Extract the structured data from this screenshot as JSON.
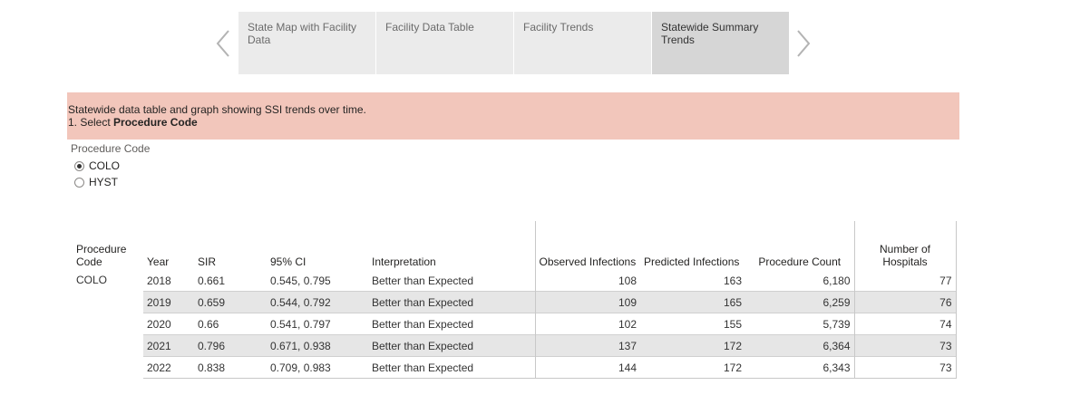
{
  "nav": {
    "tabs": [
      {
        "label": "State Map with Facility Data",
        "active": false
      },
      {
        "label": "Facility Data Table",
        "active": false
      },
      {
        "label": "Facility Trends",
        "active": false
      },
      {
        "label": "Statewide Summary Trends",
        "active": true
      }
    ]
  },
  "banner": {
    "line1": "Statewide data table and graph showing SSI trends over time.",
    "line2_prefix": "1. Select ",
    "line2_bold": "Procedure Code"
  },
  "slicer": {
    "title": "Procedure Code",
    "options": [
      {
        "label": "COLO",
        "checked": true
      },
      {
        "label": "HYST",
        "checked": false
      }
    ]
  },
  "table": {
    "headers": {
      "procedure_code": "Procedure Code",
      "year": "Year",
      "sir": "SIR",
      "ci": "95% CI",
      "interpretation": "Interpretation",
      "observed": "Observed Infections",
      "predicted": "Predicted Infections",
      "procedure_count": "Procedure Count",
      "hospitals": "Number of Hospitals"
    },
    "group_label": "COLO",
    "rows": [
      {
        "year": "2018",
        "sir": "0.661",
        "ci": "0.545, 0.795",
        "interpretation": "Better than Expected",
        "observed": "108",
        "predicted": "163",
        "procedure_count": "6,180",
        "hospitals": "77"
      },
      {
        "year": "2019",
        "sir": "0.659",
        "ci": "0.544, 0.792",
        "interpretation": "Better than Expected",
        "observed": "109",
        "predicted": "165",
        "procedure_count": "6,259",
        "hospitals": "76"
      },
      {
        "year": "2020",
        "sir": "0.66",
        "ci": "0.541, 0.797",
        "interpretation": "Better than Expected",
        "observed": "102",
        "predicted": "155",
        "procedure_count": "5,739",
        "hospitals": "74"
      },
      {
        "year": "2021",
        "sir": "0.796",
        "ci": "0.671, 0.938",
        "interpretation": "Better than Expected",
        "observed": "137",
        "predicted": "172",
        "procedure_count": "6,364",
        "hospitals": "73"
      },
      {
        "year": "2022",
        "sir": "0.838",
        "ci": "0.709, 0.983",
        "interpretation": "Better than Expected",
        "observed": "144",
        "predicted": "172",
        "procedure_count": "6,343",
        "hospitals": "73"
      }
    ]
  },
  "icons": {
    "prev": "chevron-left-icon",
    "next": "chevron-right-icon"
  },
  "colors": {
    "banner": "#f2c6bb",
    "tab": "#ebebeb",
    "tab_active": "#d6d6d6",
    "row_shade": "#e6e6e6"
  }
}
